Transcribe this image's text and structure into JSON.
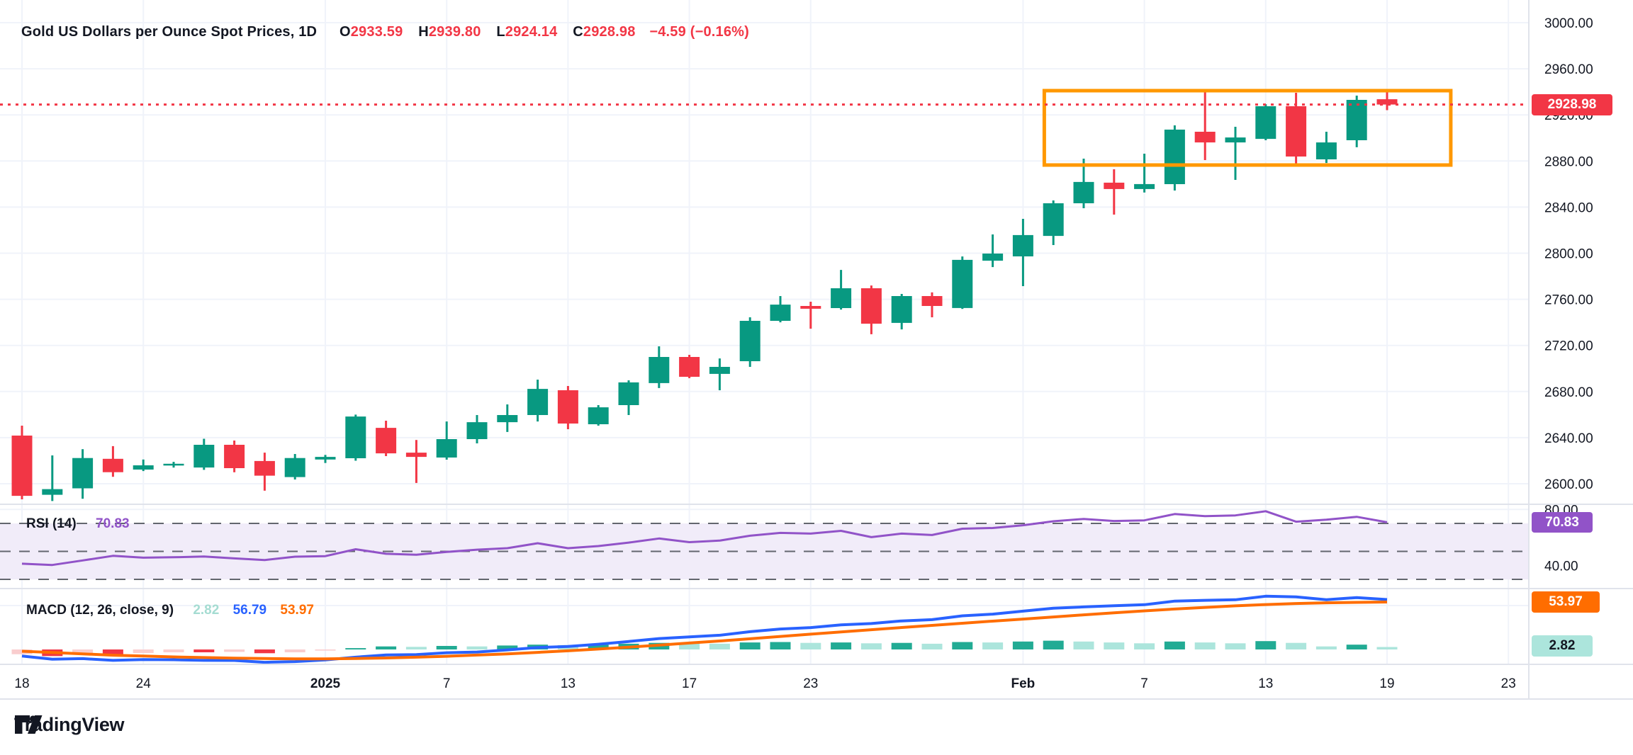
{
  "chart_data": {
    "type": "candlestick+indicators",
    "title": {
      "symbol": "Gold US Dollars per Ounce Spot Prices, 1D",
      "open_label": "O",
      "open": "2933.59",
      "high_label": "H",
      "high": "2939.80",
      "low_label": "L",
      "low": "2924.14",
      "close_label": "C",
      "close": "2928.98",
      "change": "−4.59 (−0.16%)"
    },
    "price_axis": {
      "last_price": 2928.98,
      "last_price_label": "2928.98",
      "ticks": [
        {
          "label": "3000.00",
          "value": 3000
        },
        {
          "label": "2960.00",
          "value": 2960
        },
        {
          "label": "2920.00",
          "value": 2920
        },
        {
          "label": "2880.00",
          "value": 2880
        },
        {
          "label": "2840.00",
          "value": 2840
        },
        {
          "label": "2800.00",
          "value": 2800
        },
        {
          "label": "2760.00",
          "value": 2760
        },
        {
          "label": "2720.00",
          "value": 2720
        },
        {
          "label": "2680.00",
          "value": 2680
        },
        {
          "label": "2640.00",
          "value": 2640
        },
        {
          "label": "2600.00",
          "value": 2600
        }
      ]
    },
    "time_axis": {
      "ticks": [
        {
          "label": "18",
          "k": 0,
          "bold": false
        },
        {
          "label": "24",
          "k": 4,
          "bold": false
        },
        {
          "label": "2025",
          "k": 10,
          "bold": true
        },
        {
          "label": "7",
          "k": 14,
          "bold": false
        },
        {
          "label": "13",
          "k": 18,
          "bold": false
        },
        {
          "label": "17",
          "k": 22,
          "bold": false
        },
        {
          "label": "23",
          "k": 26,
          "bold": false
        },
        {
          "label": "Feb",
          "k": 33,
          "bold": true
        },
        {
          "label": "7",
          "k": 37,
          "bold": false
        },
        {
          "label": "13",
          "k": 41,
          "bold": false
        },
        {
          "label": "19",
          "k": 45,
          "bold": false
        },
        {
          "label": "23",
          "k": 49,
          "bold": false
        }
      ]
    },
    "candles_ohlc": [
      [
        2641.8,
        2650.4,
        2586.5,
        2589.5
      ],
      [
        2590.4,
        2624.6,
        2585.0,
        2595.3
      ],
      [
        2596.0,
        2630.0,
        2587.0,
        2622.3
      ],
      [
        2621.6,
        2632.6,
        2606.0,
        2610.0
      ],
      [
        2612.3,
        2621.0,
        2611.0,
        2616.0
      ],
      [
        2616.0,
        2619.0,
        2614.0,
        2617.3
      ],
      [
        2614.1,
        2639.0,
        2612.0,
        2633.8
      ],
      [
        2633.8,
        2637.5,
        2610.0,
        2613.5
      ],
      [
        2619.7,
        2627.0,
        2594.0,
        2607.0
      ],
      [
        2605.8,
        2625.8,
        2603.7,
        2622.3
      ],
      [
        2621.0,
        2625.0,
        2618.0,
        2623.3
      ],
      [
        2622.1,
        2660.0,
        2620.0,
        2658.3
      ],
      [
        2648.5,
        2654.7,
        2624.0,
        2626.4
      ],
      [
        2627.0,
        2638.0,
        2600.7,
        2623.3
      ],
      [
        2622.7,
        2654.0,
        2620.9,
        2638.7
      ],
      [
        2638.7,
        2659.6,
        2635.0,
        2653.4
      ],
      [
        2653.4,
        2668.8,
        2644.9,
        2659.6
      ],
      [
        2659.6,
        2690.3,
        2654.0,
        2682.3
      ],
      [
        2681.1,
        2684.8,
        2647.3,
        2652.2
      ],
      [
        2651.6,
        2668.2,
        2650.4,
        2666.3
      ],
      [
        2668.2,
        2689.7,
        2659.6,
        2687.9
      ],
      [
        2687.3,
        2719.2,
        2683.0,
        2710.0
      ],
      [
        2710.0,
        2711.8,
        2691.6,
        2692.8
      ],
      [
        2695.3,
        2708.7,
        2681.1,
        2701.4
      ],
      [
        2706.3,
        2744.4,
        2701.4,
        2741.3
      ],
      [
        2741.3,
        2762.8,
        2740.0,
        2755.4
      ],
      [
        2754.2,
        2757.9,
        2734.5,
        2751.8
      ],
      [
        2752.4,
        2785.5,
        2751.1,
        2769.6
      ],
      [
        2769.6,
        2772.0,
        2729.7,
        2738.9
      ],
      [
        2739.5,
        2764.7,
        2733.9,
        2762.8
      ],
      [
        2762.8,
        2766.0,
        2744.4,
        2754.2
      ],
      [
        2752.4,
        2797.2,
        2751.7,
        2794.2
      ],
      [
        2793.5,
        2816.3,
        2788.0,
        2799.7
      ],
      [
        2797.2,
        2829.8,
        2771.4,
        2815.7
      ],
      [
        2815.0,
        2845.8,
        2807.1,
        2843.3
      ],
      [
        2843.3,
        2882.0,
        2839.0,
        2861.8
      ],
      [
        2861.2,
        2872.8,
        2833.5,
        2855.7
      ],
      [
        2855.7,
        2886.3,
        2852.6,
        2860.0
      ],
      [
        2859.9,
        2910.9,
        2854.4,
        2907.2
      ],
      [
        2905.4,
        2942.2,
        2880.8,
        2896.1
      ],
      [
        2896.1,
        2909.7,
        2863.6,
        2900.4
      ],
      [
        2899.2,
        2929.3,
        2898.0,
        2927.5
      ],
      [
        2927.5,
        2939.2,
        2876.5,
        2883.9
      ],
      [
        2881.4,
        2905.4,
        2878.3,
        2896.1
      ],
      [
        2898.0,
        2936.7,
        2891.9,
        2933.0
      ],
      [
        2933.59,
        2939.8,
        2924.14,
        2928.98
      ]
    ],
    "rsi": {
      "label": "RSI (14)",
      "value": "70.83",
      "upper_band": 70,
      "middle_band": 50,
      "lower_band": 30,
      "axis_labels": [
        {
          "label": "80.00",
          "value": 80
        },
        {
          "label": "40.00",
          "value": 40
        }
      ],
      "values": [
        41.2,
        40.3,
        43.5,
        46.8,
        45.5,
        45.8,
        46.3,
        45.0,
        43.8,
        46.2,
        46.6,
        51.5,
        48.3,
        47.6,
        49.6,
        51.2,
        52.3,
        55.8,
        52.3,
        53.8,
        56.3,
        59.2,
        56.6,
        57.7,
        61.2,
        63.2,
        62.7,
        64.7,
        60.2,
        62.7,
        61.7,
        66.2,
        66.7,
        68.7,
        71.5,
        73.2,
        71.7,
        72.2,
        76.7,
        75.2,
        75.7,
        78.7,
        71.2,
        72.7,
        74.7,
        70.83
      ]
    },
    "macd": {
      "label": "MACD (12, 26, close, 9)",
      "hist_value": "2.82",
      "macd_value": "56.79",
      "signal_value": "53.97",
      "signal": [
        -2.0,
        -3.5,
        -5.0,
        -6.5,
        -7.5,
        -8.5,
        -9.2,
        -9.8,
        -10.3,
        -10.6,
        -10.6,
        -10.3,
        -9.7,
        -8.8,
        -7.7,
        -6.4,
        -5.0,
        -3.3,
        -1.5,
        0.5,
        2.6,
        4.9,
        7.3,
        9.7,
        12.2,
        14.8,
        17.4,
        20.0,
        22.5,
        25.0,
        27.4,
        29.8,
        32.2,
        34.6,
        37.0,
        39.4,
        41.7,
        43.9,
        46.0,
        47.9,
        49.6,
        51.1,
        52.3,
        53.1,
        53.6,
        53.97
      ],
      "hist": [
        -5.4,
        -7.5,
        -5.4,
        -5.9,
        -4.0,
        -3.2,
        -3.2,
        -2.7,
        -4.3,
        -3.2,
        -1.3,
        1.5,
        3.5,
        3.0,
        4.0,
        3.5,
        4.5,
        5.5,
        5.0,
        5.5,
        6.5,
        7.5,
        7.0,
        6.5,
        8.0,
        8.5,
        7.5,
        8.0,
        7.0,
        7.5,
        6.5,
        8.5,
        8.0,
        9.0,
        10.0,
        9.0,
        8.0,
        7.0,
        9.0,
        8.0,
        7.0,
        9.5,
        7.5,
        3.5,
        5.5,
        2.82
      ],
      "grid_level": 50
    },
    "highlight_box": {
      "price_top": 2941.0,
      "price_bottom": 2876.5,
      "k_start": 33.7,
      "k_end": 47.1
    },
    "colors": {
      "up": "#089981",
      "down": "#f23645",
      "grid": "#f0f3fa",
      "border": "#e0e3eb",
      "text": "#131722",
      "box": "#ff9800",
      "last_price_line": "#f23645",
      "rsi_line": "#9153c8",
      "rsi_band_fill": "#f1ecf9",
      "band_dash": "#63666e",
      "macd_line": "#2962ff",
      "signal_line": "#ff6d00",
      "hist_pos_strong": "#22ab94",
      "hist_pos_weak": "#ace5dc",
      "hist_neg_strong": "#f23645",
      "hist_neg_weak": "#f9cdce"
    }
  },
  "branding": {
    "logo_text": "TradingView"
  }
}
